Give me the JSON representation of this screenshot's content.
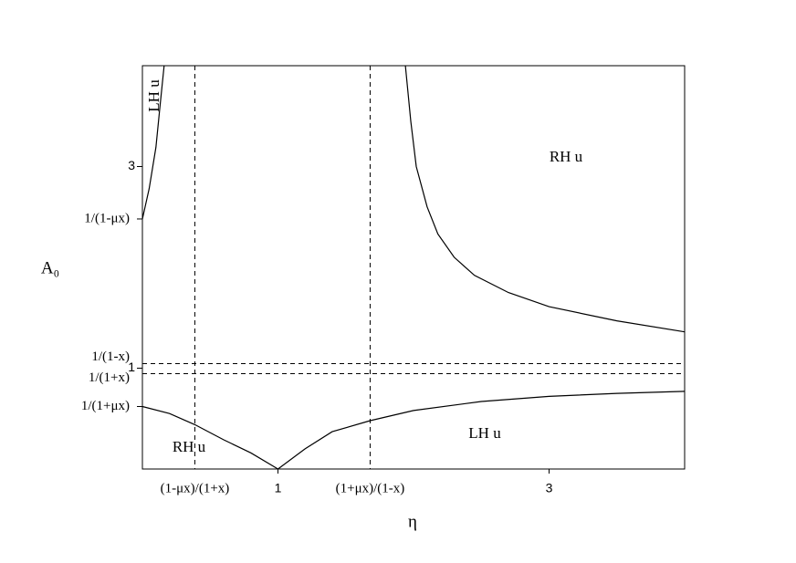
{
  "chart_data": {
    "type": "line",
    "x_label": "η",
    "y_label": "A₀",
    "xlim": [
      0,
      4
    ],
    "ylim": [
      0,
      4
    ],
    "xticks": [
      {
        "value": 0.387,
        "label": "(1-μx)/(1+x)",
        "dashed": true
      },
      1,
      {
        "value": 1.68,
        "label": "(1+μx)/(1-x)",
        "dashed": true
      },
      3
    ],
    "yticks": [
      {
        "value": 0.62,
        "label": "1/(1+μx)",
        "dashed": false
      },
      {
        "value": 0.946,
        "label": "1/(1+x)",
        "dashed": true
      },
      1,
      {
        "value": 1.045,
        "label": "1/(1-x)",
        "dashed": true
      },
      {
        "value": 2.48,
        "label": "1/(1-μx)",
        "dashed": false
      },
      3
    ],
    "color": "#000000",
    "series": [
      {
        "x": [
          0,
          0.05,
          0.1,
          0.13,
          0.16
        ],
        "values": [
          2.48,
          2.78,
          3.19,
          3.6,
          4.0
        ]
      },
      {
        "x": [
          1.94,
          1.98,
          2.02,
          2.1,
          2.18,
          2.3,
          2.45,
          2.7,
          3.0,
          3.5,
          4.0
        ],
        "values": [
          4.0,
          3.45,
          3.0,
          2.6,
          2.33,
          2.1,
          1.92,
          1.75,
          1.61,
          1.47,
          1.36
        ]
      },
      {
        "x": [
          0,
          0.2,
          0.387,
          0.6,
          0.8,
          1.0
        ],
        "values": [
          0.62,
          0.55,
          0.44,
          0.29,
          0.16,
          0
        ]
      },
      {
        "x": [
          1.0,
          1.2,
          1.4,
          1.68,
          2.0,
          2.5,
          3.0,
          3.5,
          4.0
        ],
        "values": [
          0,
          0.2,
          0.37,
          0.48,
          0.58,
          0.67,
          0.72,
          0.75,
          0.77
        ]
      }
    ],
    "annotations": [
      "LH u",
      "RH u",
      "RH u",
      "LH u"
    ]
  }
}
